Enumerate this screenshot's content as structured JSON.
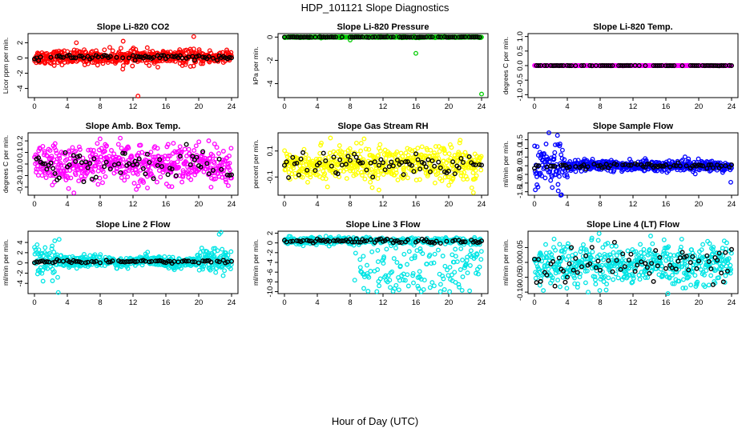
{
  "figure": {
    "title": "HDP_101121  Slope Diagnostics",
    "xlabel": "Hour of Day (UTC)"
  },
  "chart_data": [
    {
      "type": "scatter",
      "title": "Slope Li-820 CO2",
      "ylabel": "Licor ppm per min.",
      "xlim": [
        0,
        24
      ],
      "ylim": [
        -5.2,
        3.2
      ],
      "xticks": [
        "0",
        "4",
        "8",
        "12",
        "16",
        "20",
        "24"
      ],
      "yticks": [
        {
          "v": 2,
          "label": "2"
        },
        {
          "v": 0,
          "label": "0"
        },
        {
          "v": -2,
          "label": "-2"
        },
        {
          "v": -4,
          "label": "-4"
        }
      ],
      "color": "#ff0000",
      "style": "flat",
      "center": 0.1,
      "spread": 0.45,
      "hourly_spread": 0.15,
      "outliers": [
        {
          "x": 5.1,
          "y": 2.0
        },
        {
          "x": 10.8,
          "y": 2.2
        },
        {
          "x": 12.6,
          "y": -5.0
        },
        {
          "x": 19.4,
          "y": 2.8
        },
        {
          "x": 1.5,
          "y": 0.6
        },
        {
          "x": 14.6,
          "y": -0.7
        },
        {
          "x": 19.0,
          "y": -1.1
        }
      ]
    },
    {
      "type": "scatter",
      "title": "Slope Li-820 Pressure",
      "ylabel": "kPa per min.",
      "xlim": [
        0,
        24
      ],
      "ylim": [
        -5.2,
        0.3
      ],
      "xticks": [
        "0",
        "4",
        "8",
        "12",
        "16",
        "20",
        "24"
      ],
      "yticks": [
        {
          "v": 0,
          "label": "0"
        },
        {
          "v": -2,
          "label": "-2"
        },
        {
          "v": -4,
          "label": "-4"
        }
      ],
      "color": "#00cc00",
      "style": "flat",
      "center": 0,
      "spread": 0.02,
      "hourly_spread": 0.01,
      "outliers": [
        {
          "x": 16.0,
          "y": -1.4
        },
        {
          "x": 8.0,
          "y": -0.25
        },
        {
          "x": 24.0,
          "y": -4.9
        }
      ]
    },
    {
      "type": "scatter",
      "title": "Slope Li-820 Temp.",
      "ylabel": "degrees C per min.",
      "xlim": [
        0,
        24
      ],
      "ylim": [
        -1.1,
        1.1
      ],
      "xticks": [
        "0",
        "4",
        "8",
        "12",
        "16",
        "20",
        "24"
      ],
      "yticks": [
        {
          "v": 1,
          "label": "1.0"
        },
        {
          "v": 0.5,
          "label": "0.5"
        },
        {
          "v": 0,
          "label": "0.0"
        },
        {
          "v": -0.5,
          "label": "-0.5"
        },
        {
          "v": -1,
          "label": "-1.0"
        }
      ],
      "color": "#ff00ff",
      "style": "flat",
      "center": 0,
      "spread": 0.003,
      "hourly_spread": 0.002,
      "outliers": []
    },
    {
      "type": "scatter",
      "title": "Slope Amb. Box Temp.",
      "ylabel": "degrees C per min.",
      "xlim": [
        0,
        24
      ],
      "ylim": [
        -0.27,
        0.27
      ],
      "xticks": [
        "0",
        "4",
        "8",
        "12",
        "16",
        "20",
        "24"
      ],
      "yticks": [
        {
          "v": 0.2,
          "label": "0.2"
        },
        {
          "v": 0.1,
          "label": "0.1"
        },
        {
          "v": 0,
          "label": "0.0"
        },
        {
          "v": -0.1,
          "label": "-0.1"
        },
        {
          "v": -0.2,
          "label": "-0.2"
        }
      ],
      "color": "#ff00ff",
      "style": "noise",
      "center": 0,
      "spread": 0.08,
      "hourly_spread": 0.06,
      "outliers": [
        {
          "x": 4.8,
          "y": -0.25
        },
        {
          "x": 12.4,
          "y": -0.22
        },
        {
          "x": 21.5,
          "y": -0.2
        }
      ]
    },
    {
      "type": "scatter",
      "title": "Slope Gas Stream RH",
      "ylabel": "percent per min.",
      "xlim": [
        0,
        24
      ],
      "ylim": [
        -0.24,
        0.24
      ],
      "xticks": [
        "0",
        "4",
        "8",
        "12",
        "16",
        "20",
        "24"
      ],
      "yticks": [
        {
          "v": 0.1,
          "label": "0.1"
        },
        {
          "v": -0.1,
          "label": "-0.1"
        }
      ],
      "color": "#ffff00",
      "style": "noise",
      "center": 0,
      "spread": 0.065,
      "hourly_spread": 0.05,
      "outliers": [
        {
          "x": 5.6,
          "y": 0.2
        },
        {
          "x": 11.5,
          "y": -0.2
        },
        {
          "x": 23.0,
          "y": -0.22
        }
      ]
    },
    {
      "type": "scatter",
      "title": "Slope Sample Flow",
      "ylabel": "ml/min per min.",
      "xlim": [
        0,
        24
      ],
      "ylim": [
        -1.7,
        1.9
      ],
      "xticks": [
        "0",
        "4",
        "8",
        "12",
        "16",
        "20",
        "24"
      ],
      "yticks": [
        {
          "v": 1.5,
          "label": "1.5"
        },
        {
          "v": 1,
          "label": "1.0"
        },
        {
          "v": 0.5,
          "label": "0.5"
        },
        {
          "v": 0,
          "label": "0.0"
        },
        {
          "v": -0.5,
          "label": "-0.5"
        },
        {
          "v": -1,
          "label": "-1.0"
        },
        {
          "v": -1.5,
          "label": "-1.5"
        }
      ],
      "color": "#0000ff",
      "style": "earlywide",
      "center": 0,
      "spread": 0.16,
      "early_spread": 0.65,
      "hourly_spread": 0.08,
      "outliers": [
        {
          "x": 2.8,
          "y": 1.75
        },
        {
          "x": 2.9,
          "y": -1.45
        },
        {
          "x": 0.3,
          "y": -1.1
        },
        {
          "x": 23.9,
          "y": -0.95
        },
        {
          "x": 3.4,
          "y": 0.9
        }
      ]
    },
    {
      "type": "scatter",
      "title": "Slope Line 2 Flow",
      "ylabel": "ml/min per min.",
      "xlim": [
        0,
        24
      ],
      "ylim": [
        -6,
        6.2
      ],
      "xticks": [
        "0",
        "4",
        "8",
        "12",
        "16",
        "20",
        "24"
      ],
      "yticks": [
        {
          "v": 4,
          "label": "4"
        },
        {
          "v": 2,
          "label": "2"
        },
        {
          "v": 0,
          "label": "0"
        },
        {
          "v": -2,
          "label": "-2"
        },
        {
          "v": -4,
          "label": "-4"
        }
      ],
      "color": "#00e5e5",
      "style": "line2",
      "center": 0.3,
      "spread": 0.5,
      "hourly_spread": 0.15,
      "outliers": [
        {
          "x": 3.0,
          "y": 4.6
        },
        {
          "x": 2.9,
          "y": -5.8
        },
        {
          "x": 22.5,
          "y": 5.6
        },
        {
          "x": 22.7,
          "y": 6.0
        },
        {
          "x": 21.8,
          "y": 2.8
        },
        {
          "x": 2.2,
          "y": -3.5
        },
        {
          "x": 1.3,
          "y": 3.0
        }
      ]
    },
    {
      "type": "scatter",
      "title": "Slope Line 3 Flow",
      "ylabel": "ml/min per min.",
      "xlim": [
        0,
        24
      ],
      "ylim": [
        -10.4,
        2.4
      ],
      "xticks": [
        "0",
        "4",
        "8",
        "12",
        "16",
        "20",
        "24"
      ],
      "yticks": [
        {
          "v": 2,
          "label": "2"
        },
        {
          "v": 0,
          "label": "0"
        },
        {
          "v": -2,
          "label": "-2"
        },
        {
          "v": -4,
          "label": "-4"
        },
        {
          "v": -6,
          "label": "-6"
        },
        {
          "v": -8,
          "label": "-8"
        },
        {
          "v": -10,
          "label": "-10"
        }
      ],
      "color": "#00e5e5",
      "style": "line3",
      "center": 0.4,
      "spread": 0.35,
      "hourly_spread": 0.25,
      "outliers": []
    },
    {
      "type": "scatter",
      "title": "Slope Line 4 (LT) Flow",
      "ylabel": "ml/min per min.",
      "xlim": [
        0,
        24
      ],
      "ylim": [
        -0.105,
        0.105
      ],
      "xticks": [
        "0",
        "4",
        "8",
        "12",
        "16",
        "20",
        "24"
      ],
      "yticks": [
        {
          "v": 0.05,
          "label": "0.05"
        },
        {
          "v": 0,
          "label": "0.00"
        },
        {
          "v": -0.05,
          "label": "-0.05"
        },
        {
          "v": -0.1,
          "label": "-0.10"
        }
      ],
      "color": "#00e5e5",
      "style": "noise",
      "center": -0.005,
      "spread": 0.035,
      "hourly_spread": 0.03,
      "outliers": []
    }
  ]
}
